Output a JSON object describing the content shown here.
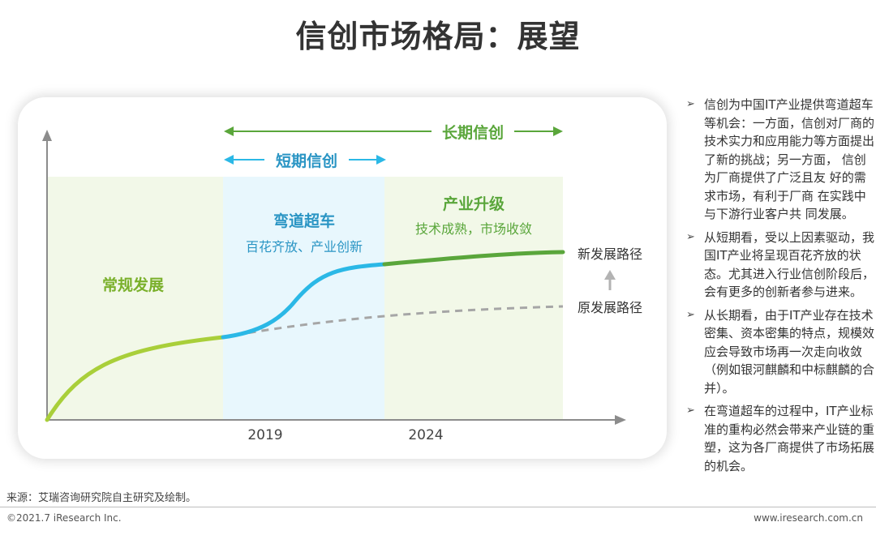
{
  "title": "信创市场格局：展望",
  "diagram": {
    "long_term_label": "长期信创",
    "short_term_label": "短期信创",
    "phase1_label": "常规发展",
    "phase2_label": "弯道超车",
    "phase2_sub": "百花齐放、产业创新",
    "phase3_label": "产业升级",
    "phase3_sub": "技术成熟，市场收敛",
    "new_path_label": "新发展路径",
    "old_path_label": "原发展路径",
    "year_2019": "2019",
    "year_2024": "2024",
    "colors": {
      "green_dark": "#5aa63b",
      "blue": "#2bb8e6",
      "lime": "#a9cf3a",
      "gray_dash": "#a6a6a6",
      "zone_green": "#f2f8e8",
      "zone_blue": "#e8f7fd"
    }
  },
  "notes": [
    "信创为中国IT产业提供弯道超车等机会：一方面，信创对厂商的技术实力和应用能力等方面提出了新的挑战；另一方面， 信创为厂商提供了广泛且友 好的需求市场，有利于厂商 在实践中与下游行业客户共 同发展。",
    "从短期看，受以上因素驱动，我国IT产业将呈现百花齐放的状态。尤其进入行业信创阶段后，会有更多的创新者参与进来。",
    "从长期看，由于IT产业存在技术密集、资本密集的特点，规模效应会导致市场再一次走向收敛（例如银河麒麟和中标麒麟的合并）。",
    "在弯道超车的过程中，IT产业标准的重构必然会带来产业链的重塑，这为各厂商提供了市场拓展的机会。"
  ],
  "bullet_glyph": "➢",
  "source": "来源：艾瑞咨询研究院自主研究及绘制。",
  "copyright": "©2021.7 iResearch Inc.",
  "website": "www.iresearch.com.cn"
}
